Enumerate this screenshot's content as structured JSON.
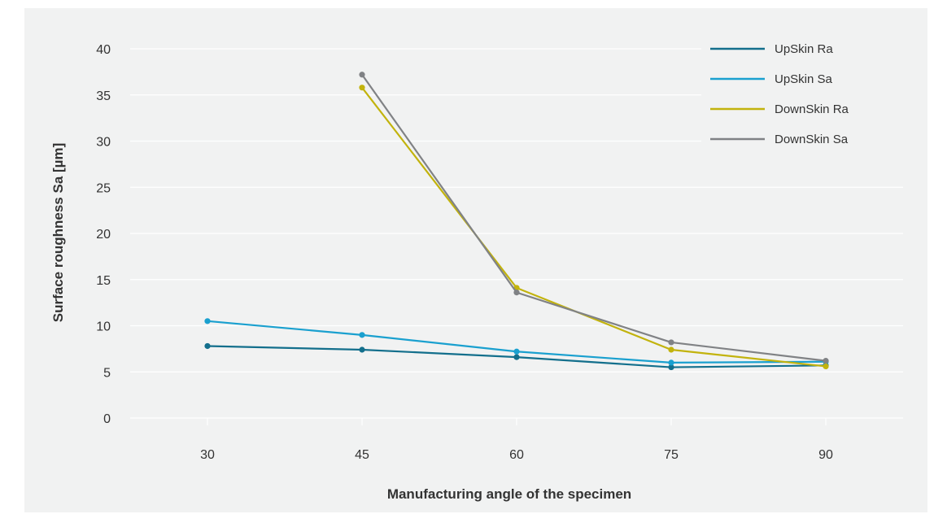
{
  "chart_data": {
    "type": "line",
    "title": "",
    "xlabel": "Manufacturing angle of the specimen",
    "ylabel": "Surface roughness Sa [µm]",
    "x": [
      30,
      45,
      60,
      75,
      90
    ],
    "xlim": [
      22.5,
      97.5
    ],
    "ylim": [
      0,
      40
    ],
    "yticks": [
      0,
      5,
      10,
      15,
      20,
      25,
      30,
      35,
      40
    ],
    "grid": "horizontal",
    "legend_position": "top-right",
    "series": [
      {
        "name": "UpSkin Ra",
        "color": "#136f8c",
        "values": [
          7.8,
          7.4,
          6.6,
          5.5,
          5.7
        ]
      },
      {
        "name": "UpSkin Sa",
        "color": "#1aa0cf",
        "values": [
          10.5,
          9.0,
          7.2,
          6.0,
          6.1
        ]
      },
      {
        "name": "DownSkin Ra",
        "color": "#c2b30d",
        "values": [
          null,
          35.8,
          14.1,
          7.4,
          5.6
        ]
      },
      {
        "name": "DownSkin Sa",
        "color": "#808285",
        "values": [
          null,
          37.2,
          13.6,
          8.2,
          6.2
        ]
      }
    ]
  }
}
